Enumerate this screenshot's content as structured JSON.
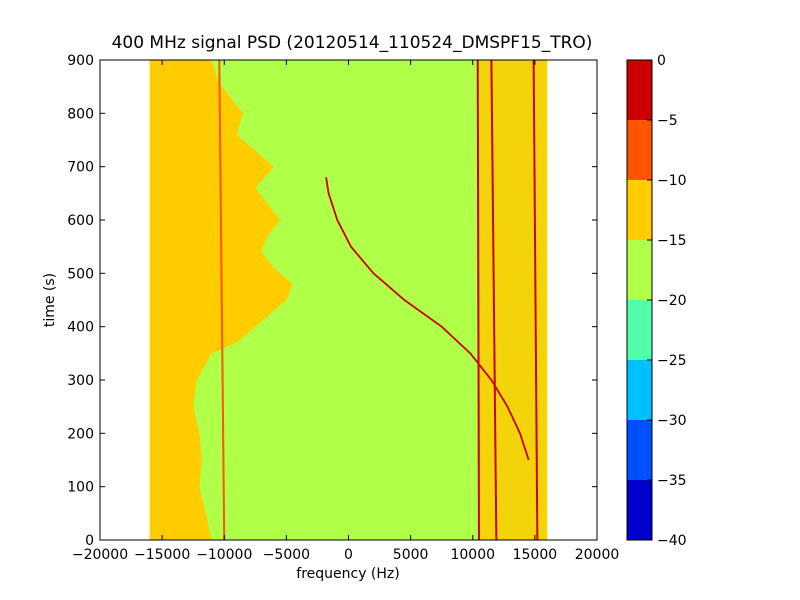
{
  "chart_data": {
    "type": "heatmap",
    "title": "400 MHz signal PSD (20120514_110524_DMSPF15_TRO)",
    "xlabel": "frequency (Hz)",
    "ylabel": "time (s)",
    "xlim": [
      -20000,
      20000
    ],
    "ylim": [
      0,
      900
    ],
    "xticks": [
      -20000,
      -15000,
      -10000,
      -5000,
      0,
      5000,
      10000,
      15000,
      20000
    ],
    "yticks": [
      0,
      100,
      200,
      300,
      400,
      500,
      600,
      700,
      800,
      900
    ],
    "data_x_range": [
      -16000,
      16000
    ],
    "background_level": -17.5,
    "noise_band_left": {
      "x_left": -16000,
      "edge": [
        [
          0,
          -11000
        ],
        [
          50,
          -11500
        ],
        [
          100,
          -12000
        ],
        [
          150,
          -11800
        ],
        [
          200,
          -12000
        ],
        [
          250,
          -12500
        ],
        [
          300,
          -12200
        ],
        [
          350,
          -11000
        ],
        [
          370,
          -9000
        ],
        [
          400,
          -7500
        ],
        [
          420,
          -6500
        ],
        [
          450,
          -5000
        ],
        [
          480,
          -4500
        ],
        [
          510,
          -6000
        ],
        [
          540,
          -7000
        ],
        [
          570,
          -6500
        ],
        [
          600,
          -5500
        ],
        [
          630,
          -6500
        ],
        [
          660,
          -7500
        ],
        [
          700,
          -6000
        ],
        [
          730,
          -7500
        ],
        [
          760,
          -9000
        ],
        [
          800,
          -8500
        ],
        [
          830,
          -9500
        ],
        [
          860,
          -10500
        ],
        [
          900,
          -11000
        ]
      ],
      "level": -12.5
    },
    "carrier_lines": [
      {
        "x": [
          [
            0,
            -10000
          ],
          [
            900,
            -10400
          ]
        ],
        "level": -10
      },
      {
        "x": [
          [
            0,
            10500
          ],
          [
            900,
            10400
          ]
        ],
        "level": -3
      },
      {
        "x": [
          [
            0,
            11900
          ],
          [
            900,
            11500
          ]
        ],
        "level": -3
      },
      {
        "x": [
          [
            0,
            15200
          ],
          [
            900,
            14900
          ]
        ],
        "level": -3
      }
    ],
    "doppler_curve": {
      "points": [
        [
          150,
          14500
        ],
        [
          200,
          13800
        ],
        [
          250,
          12800
        ],
        [
          300,
          11500
        ],
        [
          350,
          9800
        ],
        [
          400,
          7500
        ],
        [
          450,
          4500
        ],
        [
          500,
          2000
        ],
        [
          550,
          200
        ],
        [
          600,
          -900
        ],
        [
          650,
          -1600
        ],
        [
          680,
          -1800
        ]
      ],
      "level": -3
    },
    "right_band": {
      "x_range": [
        10500,
        16000
      ],
      "level": -13
    },
    "colorbar": {
      "boundaries": [
        -40,
        -35,
        -30,
        -25,
        -20,
        -15,
        -10,
        -5,
        0
      ],
      "colors": [
        "#0000cc",
        "#0050ff",
        "#00c0ff",
        "#50ffa8",
        "#b0ff48",
        "#ffcc00",
        "#ff5500",
        "#cc0000"
      ],
      "tick_labels": [
        "0",
        "−5",
        "−10",
        "−15",
        "−20",
        "−25",
        "−30",
        "−35",
        "−40"
      ]
    },
    "grid": false,
    "legend": "none"
  }
}
